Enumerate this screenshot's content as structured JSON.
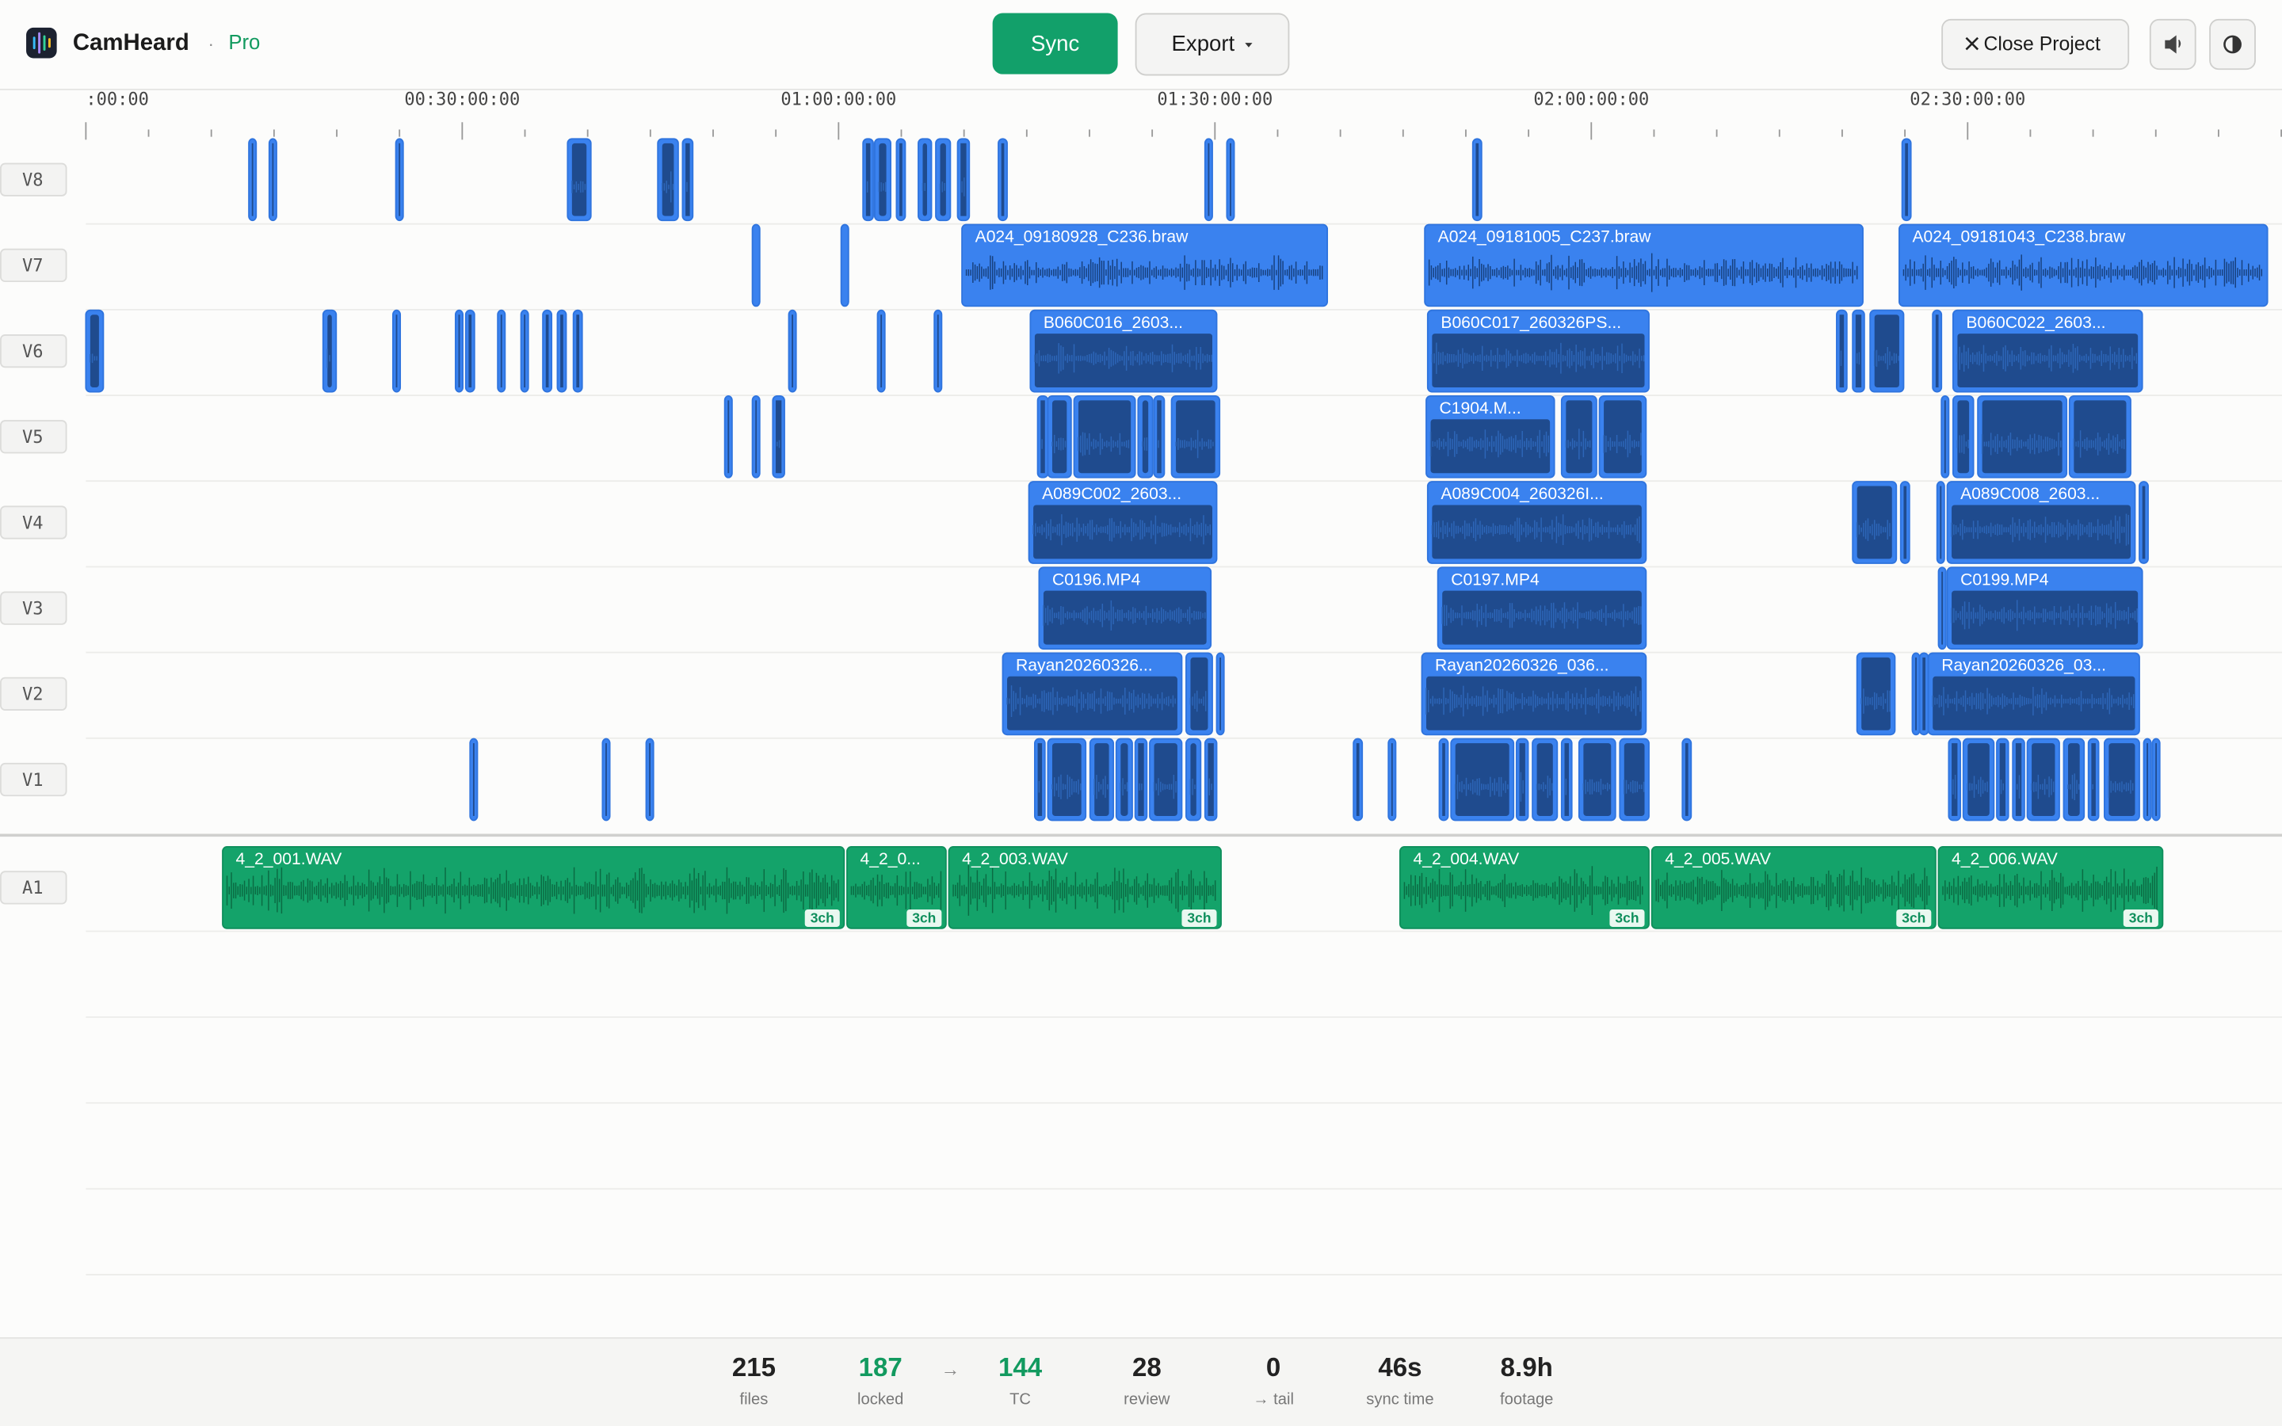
{
  "header": {
    "app": "CamHeard",
    "separator": "·",
    "plan": "Pro",
    "sync": "Sync",
    "export": "Export",
    "close": "Close Project"
  },
  "ruler": [
    ":00:00",
    "00:30:00:00",
    "01:00:00:00",
    "01:30:00:00",
    "02:00:00:00",
    "02:30:00:00"
  ],
  "tracks": [
    {
      "label": "V8"
    },
    {
      "label": "V7",
      "clips": [
        "A024_09180928_C236.braw",
        "A024_09181005_C237.braw",
        "A024_09181043_C238.braw"
      ]
    },
    {
      "label": "V6",
      "clips": [
        "B060C016_2603...",
        "B060C017_260326PS...",
        "B060C022_2603..."
      ]
    },
    {
      "label": "V5",
      "clips": [
        "C1904.M..."
      ]
    },
    {
      "label": "V4",
      "clips": [
        "A089C002_2603...",
        "A089C004_260326I...",
        "A089C008_2603..."
      ]
    },
    {
      "label": "V3",
      "clips": [
        "C0196.MP4",
        "C0197.MP4",
        "C0199.MP4"
      ]
    },
    {
      "label": "V2",
      "clips": [
        "Rayan20260326...",
        "Rayan20260326_036...",
        "Rayan20260326_03..."
      ]
    },
    {
      "label": "V1"
    }
  ],
  "audio": {
    "label": "A1",
    "clips": [
      {
        "name": "4_2_001.WAV",
        "channels": "3ch"
      },
      {
        "name": "4_2_0...",
        "channels": "3ch"
      },
      {
        "name": "4_2_003.WAV",
        "channels": "3ch"
      },
      {
        "name": "4_2_004.WAV",
        "channels": "3ch"
      },
      {
        "name": "4_2_005.WAV",
        "channels": "3ch"
      },
      {
        "name": "4_2_006.WAV",
        "channels": "3ch"
      }
    ]
  },
  "stats": {
    "arrow": "→",
    "items": [
      {
        "value": 215,
        "label": "files"
      },
      {
        "value": 187,
        "label": "locked"
      },
      {
        "value": 144,
        "label": "TC"
      },
      {
        "value": 28,
        "label": "review"
      },
      {
        "value": 0,
        "label": "→ tail"
      },
      {
        "value": "46s",
        "label": "sync time"
      },
      {
        "value": "8.9h",
        "label": "footage"
      }
    ]
  }
}
